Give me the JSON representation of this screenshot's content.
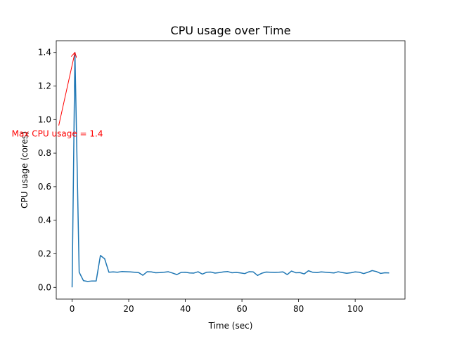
{
  "chart_data": {
    "type": "line",
    "title": "CPU usage over Time",
    "xlabel": "Time (sec)",
    "ylabel": "CPU usage (cores)",
    "x": [
      0,
      1,
      2.5,
      4,
      5.5,
      7,
      8.5,
      10,
      11.5,
      13,
      14.5,
      16,
      17.5,
      19,
      20.5,
      22,
      23.5,
      25,
      26.5,
      28,
      29.5,
      31,
      32.5,
      34,
      35.5,
      37,
      38.5,
      40,
      41.5,
      43,
      44.5,
      46,
      47.5,
      49,
      50.5,
      52,
      53.5,
      55,
      56.5,
      58,
      59.5,
      61,
      62.5,
      64,
      65.5,
      67,
      68.5,
      70,
      71.5,
      73,
      74.5,
      76,
      77.5,
      79,
      80.5,
      82,
      83.5,
      85,
      86.5,
      88,
      89.5,
      91,
      92.5,
      94,
      95.5,
      97,
      98.5,
      100,
      101.5,
      103,
      104.5,
      106,
      107.5,
      109,
      110.5,
      112
    ],
    "series": [
      {
        "color": "#1f77b4",
        "values": [
          0,
          1.4,
          0.09,
          0.04,
          0.035,
          0.038,
          0.038,
          0.19,
          0.17,
          0.09,
          0.092,
          0.09,
          0.094,
          0.093,
          0.092,
          0.09,
          0.088,
          0.072,
          0.093,
          0.092,
          0.087,
          0.088,
          0.09,
          0.093,
          0.085,
          0.076,
          0.089,
          0.09,
          0.086,
          0.085,
          0.093,
          0.079,
          0.09,
          0.091,
          0.085,
          0.088,
          0.092,
          0.094,
          0.087,
          0.089,
          0.086,
          0.082,
          0.093,
          0.092,
          0.071,
          0.084,
          0.091,
          0.09,
          0.089,
          0.09,
          0.092,
          0.076,
          0.097,
          0.087,
          0.088,
          0.08,
          0.099,
          0.09,
          0.088,
          0.092,
          0.09,
          0.088,
          0.086,
          0.093,
          0.088,
          0.084,
          0.087,
          0.092,
          0.09,
          0.082,
          0.09,
          0.1,
          0.094,
          0.083,
          0.087,
          0.086
        ]
      }
    ],
    "xlim": [
      -5.6,
      117.6
    ],
    "ylim": [
      -0.07,
      1.47
    ],
    "xticks": [
      0,
      20,
      40,
      60,
      80,
      100
    ],
    "yticks": [
      {
        "value": 0,
        "label": "0.0"
      },
      0.2,
      0.4,
      0.6,
      0.8,
      {
        "value": 1,
        "label": "1.0"
      },
      1.2,
      1.4
    ],
    "annotation": {
      "text": "Max CPU usage = 1.4",
      "x": 1,
      "y": 1.4,
      "color": "red"
    }
  }
}
